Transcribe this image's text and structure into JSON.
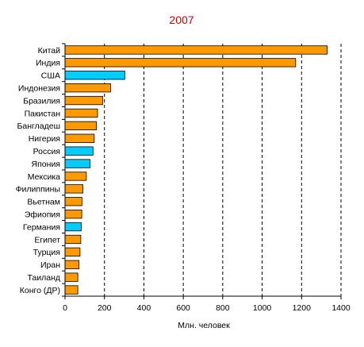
{
  "chart_data": {
    "type": "bar",
    "orientation": "horizontal",
    "title": "2007",
    "xlabel": "Млн. человек",
    "ylabel": "",
    "xlim": [
      0,
      1400
    ],
    "xticks": [
      0,
      200,
      400,
      600,
      800,
      1000,
      1200,
      1400
    ],
    "grid": "vertical-dashed",
    "categories": [
      "Китай",
      "Индия",
      "США",
      "Индонезия",
      "Бразилия",
      "Пакистан",
      "Бангладеш",
      "Нигерия",
      "Россия",
      "Япония",
      "Мексика",
      "Филиппины",
      "Вьетнам",
      "Эфиопия",
      "Германия",
      "Египет",
      "Турция",
      "Иран",
      "Таиланд",
      "Конго (ДР)"
    ],
    "values": [
      1330,
      1170,
      303,
      231,
      191,
      165,
      159,
      148,
      142,
      127,
      108,
      91,
      86,
      85,
      82,
      80,
      76,
      71,
      65,
      65
    ],
    "colors": [
      "#ff9900",
      "#ff9900",
      "#00ccff",
      "#ff9900",
      "#ff9900",
      "#ff9900",
      "#ff9900",
      "#ff9900",
      "#00ccff",
      "#00ccff",
      "#ff9900",
      "#ff9900",
      "#ff9900",
      "#ff9900",
      "#00ccff",
      "#ff9900",
      "#ff9900",
      "#ff9900",
      "#ff9900",
      "#ff9900"
    ]
  }
}
